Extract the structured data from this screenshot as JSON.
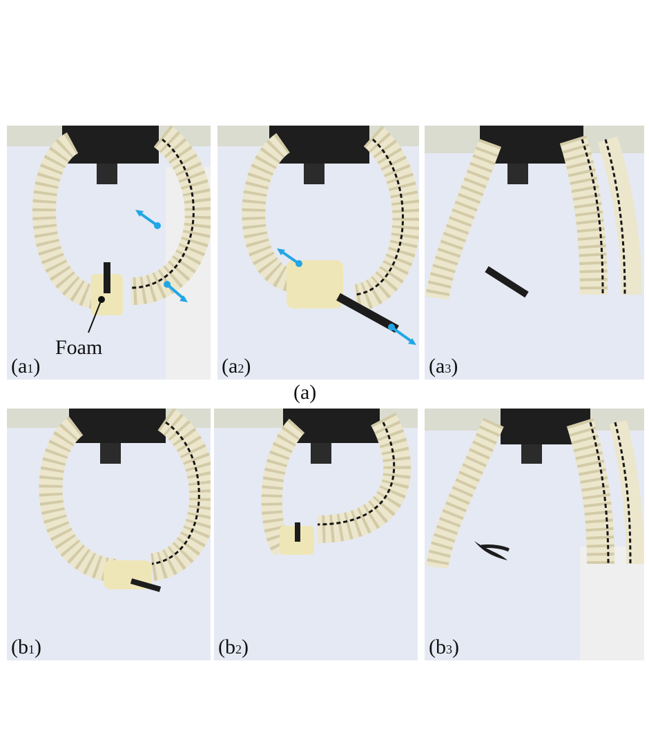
{
  "panels": {
    "a1": {
      "letter": "a",
      "sub": "1"
    },
    "a2": {
      "letter": "a",
      "sub": "2"
    },
    "a3": {
      "letter": "a",
      "sub": "3"
    },
    "b1": {
      "letter": "b",
      "sub": "1"
    },
    "b2": {
      "letter": "b",
      "sub": "2"
    },
    "b3": {
      "letter": "b",
      "sub": "3"
    }
  },
  "group_label": "(a)",
  "annotation": "Foam",
  "colors": {
    "gripper": "#ece6cc",
    "gripper_shade": "#d3cba8",
    "background": "#e4e8f2",
    "spring": "#151515",
    "arrow": "#22a6e6",
    "mount": "#1c1c1c",
    "foam": "#efe6b8"
  }
}
